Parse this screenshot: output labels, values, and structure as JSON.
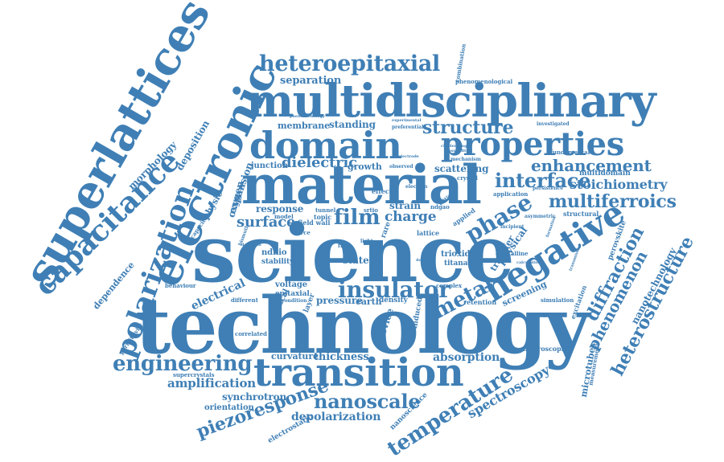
{
  "theme": {
    "word_color": "#3f7fb5",
    "background": "#ffffff"
  },
  "words": [
    "science",
    "technology",
    "material",
    "multidisciplinary",
    "domain",
    "superlattices",
    "electronic",
    "transition",
    "capacitance",
    "polarization",
    "properties",
    "negative",
    "heteroepitaxial",
    "engineering",
    "temperature",
    "nanoscale",
    "piezoresponse",
    "multiferroics",
    "phase",
    "insulator",
    "interface",
    "enhancement",
    "structure",
    "heterostructure",
    "diffraction",
    "phenomenon",
    "film",
    "metal",
    "dielectric",
    "stoichiometry",
    "charge",
    "surface",
    "spectroscopy",
    "depolarization",
    "amplification",
    "strain",
    "response",
    "physical",
    "absorption",
    "thickness",
    "nanotechnology",
    "separation",
    "standing",
    "membrane",
    "morphology",
    "deposition",
    "dependence",
    "electrical",
    "pressure",
    "device",
    "earth",
    "voltage",
    "epitaxial",
    "chemical",
    "screening",
    "synchrotron",
    "curvature",
    "orientation",
    "electrostatic",
    "microtubes",
    "expansion",
    "oxygen",
    "growth",
    "junction",
    "scattering",
    "transfer",
    "multidomain",
    "trioxide",
    "titanate",
    "ndnio",
    "stability",
    "retention",
    "density",
    "induced",
    "nanoscience",
    "combination",
    "phenomenological",
    "perovskite",
    "excitation",
    "measurement",
    "macroscopic",
    "crystalline",
    "physic",
    "capacitor",
    "supercrystals",
    "correlated",
    "permittivity",
    "behaviour",
    "different",
    "field wall",
    "tunnel",
    "model",
    "topic",
    "srtio",
    "ndgao",
    "lattice",
    "state",
    "free",
    "force",
    "effect",
    "fundamental",
    "application",
    "persistence",
    "asymmetric",
    "structural",
    "incipient",
    "simulation",
    "complex",
    "observed",
    "mechanism",
    "investigated",
    "challenging",
    "electrode",
    "preferential",
    "experimental",
    "phenomenology",
    "transmission",
    "formation",
    "calculation",
    "superlattice",
    "crystal",
    "electron",
    "possibilities",
    "doping",
    "rare",
    "light",
    "layer",
    "bismuth",
    "deflation",
    "condition",
    "critical",
    "applied"
  ]
}
